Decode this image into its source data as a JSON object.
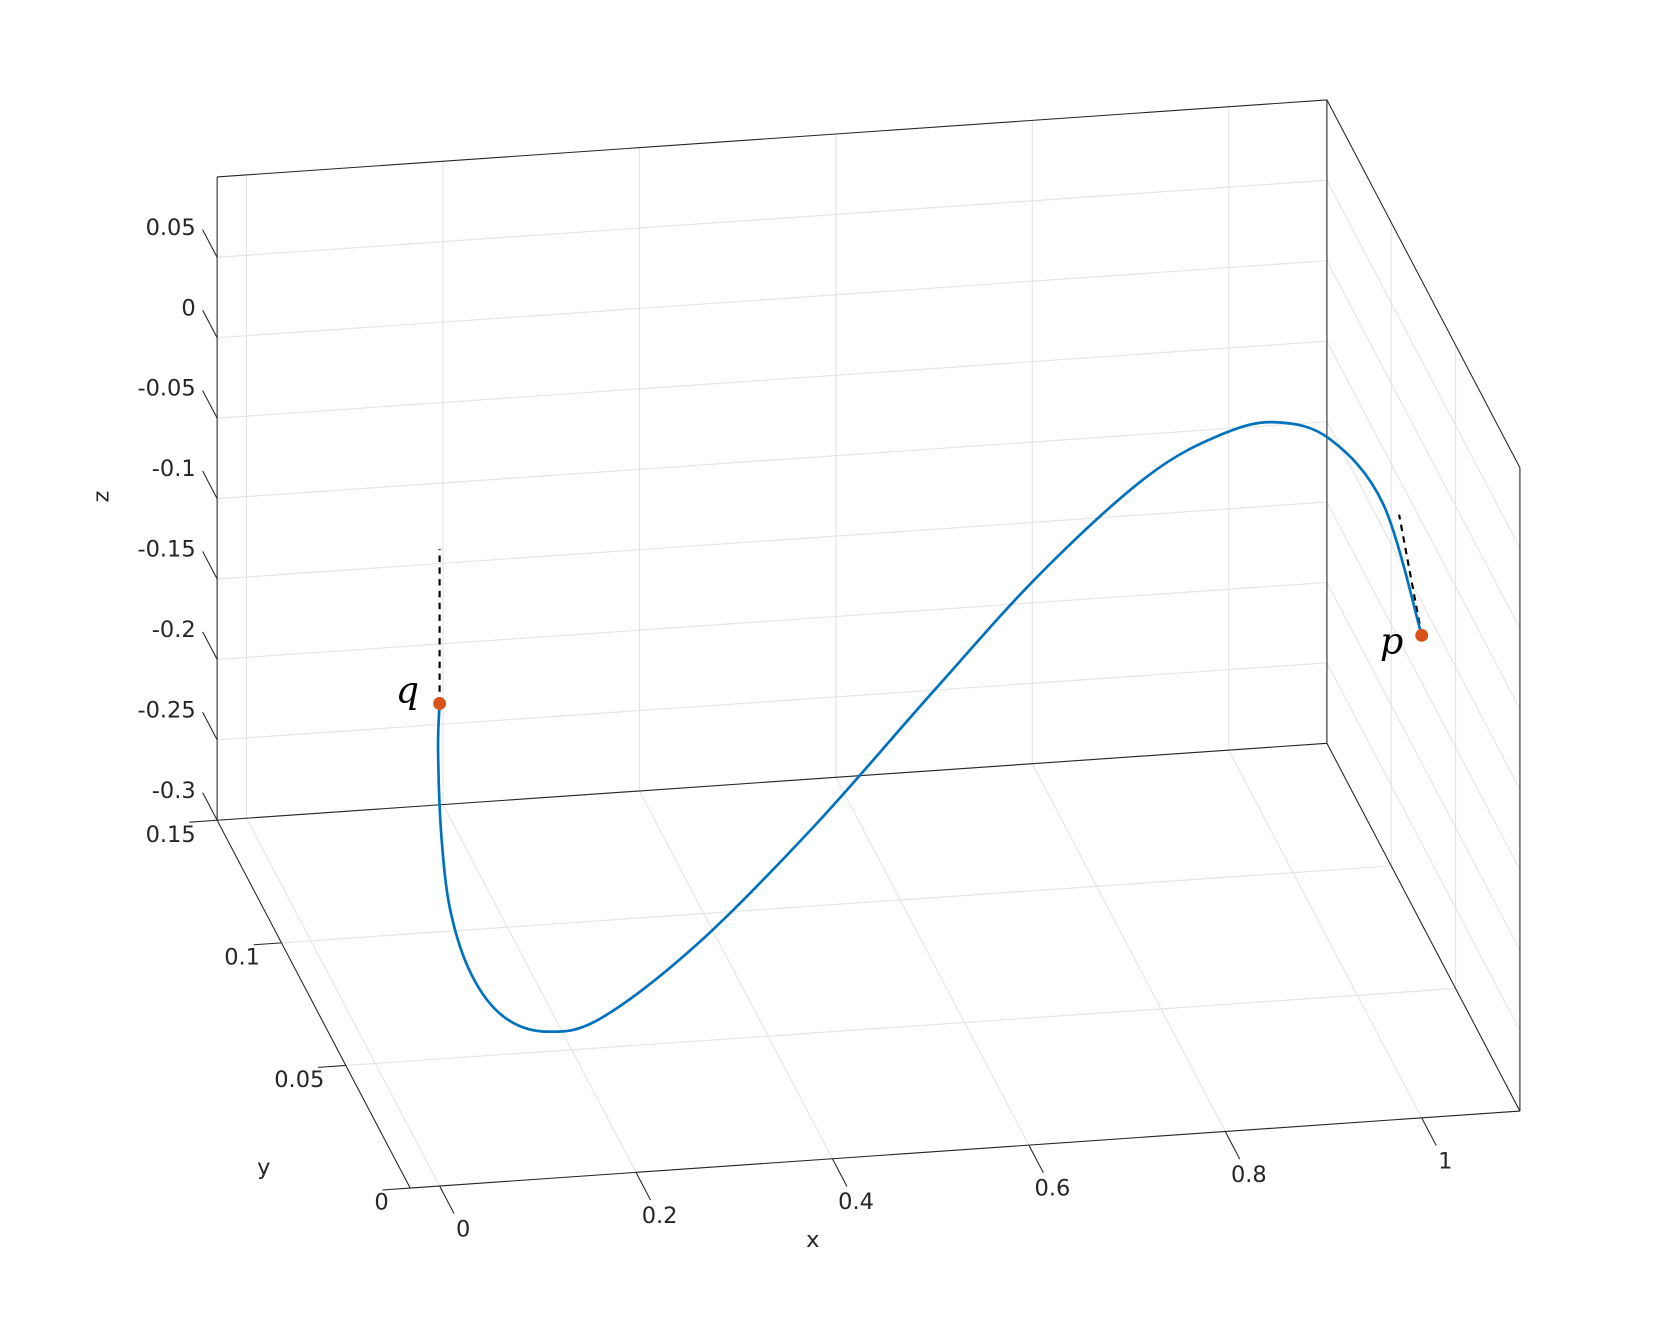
{
  "chart_data": {
    "type": "line3d",
    "xlabel": "x",
    "ylabel": "y",
    "zlabel": "z",
    "xlim": [
      -0.03,
      1.1
    ],
    "ylim": [
      0,
      0.15
    ],
    "zlim": [
      -0.3,
      0.1
    ],
    "xticks": [
      0,
      0.2,
      0.4,
      0.6,
      0.8,
      1
    ],
    "yticks": [
      0,
      0.05,
      0.1,
      0.15
    ],
    "zticks": [
      -0.3,
      -0.25,
      -0.2,
      -0.15,
      -0.1,
      -0.05,
      0,
      0.05
    ],
    "grid": true,
    "curve": {
      "color": "#0072bd",
      "x": [
        0,
        0.005,
        0.015,
        0.031,
        0.059,
        0.098,
        0.148,
        0.21,
        0.321,
        0.454,
        0.587,
        0.703,
        0.812,
        0.882,
        0.93,
        0.972,
        1.0,
        1
      ],
      "y": [
        0,
        0.005,
        0.01,
        0.015,
        0.02,
        0.025,
        0.03,
        0.035,
        0.045,
        0.055,
        0.065,
        0.07,
        0.07,
        0.065,
        0.06,
        0.05,
        0.03,
        0
      ],
      "z": [
        0,
        -0.037,
        -0.099,
        -0.154,
        -0.202,
        -0.237,
        -0.256,
        -0.258,
        -0.232,
        -0.179,
        -0.117,
        -0.056,
        0,
        0.031,
        0.044,
        0.047,
        0.036,
        0
      ]
    },
    "points": {
      "color": "#d95319",
      "labels": [
        "p",
        "q"
      ],
      "x": [
        1,
        0
      ],
      "y": [
        0,
        0
      ],
      "z": [
        0,
        0
      ]
    },
    "tangents": [
      {
        "color": "#000000",
        "x": [
          0,
          0
        ],
        "y": [
          0,
          0
        ],
        "z": [
          0,
          0.096
        ]
      },
      {
        "color": "#000000",
        "x": [
          1,
          0.977
        ],
        "y": [
          0,
          0
        ],
        "z": [
          0,
          0.076
        ]
      }
    ]
  }
}
